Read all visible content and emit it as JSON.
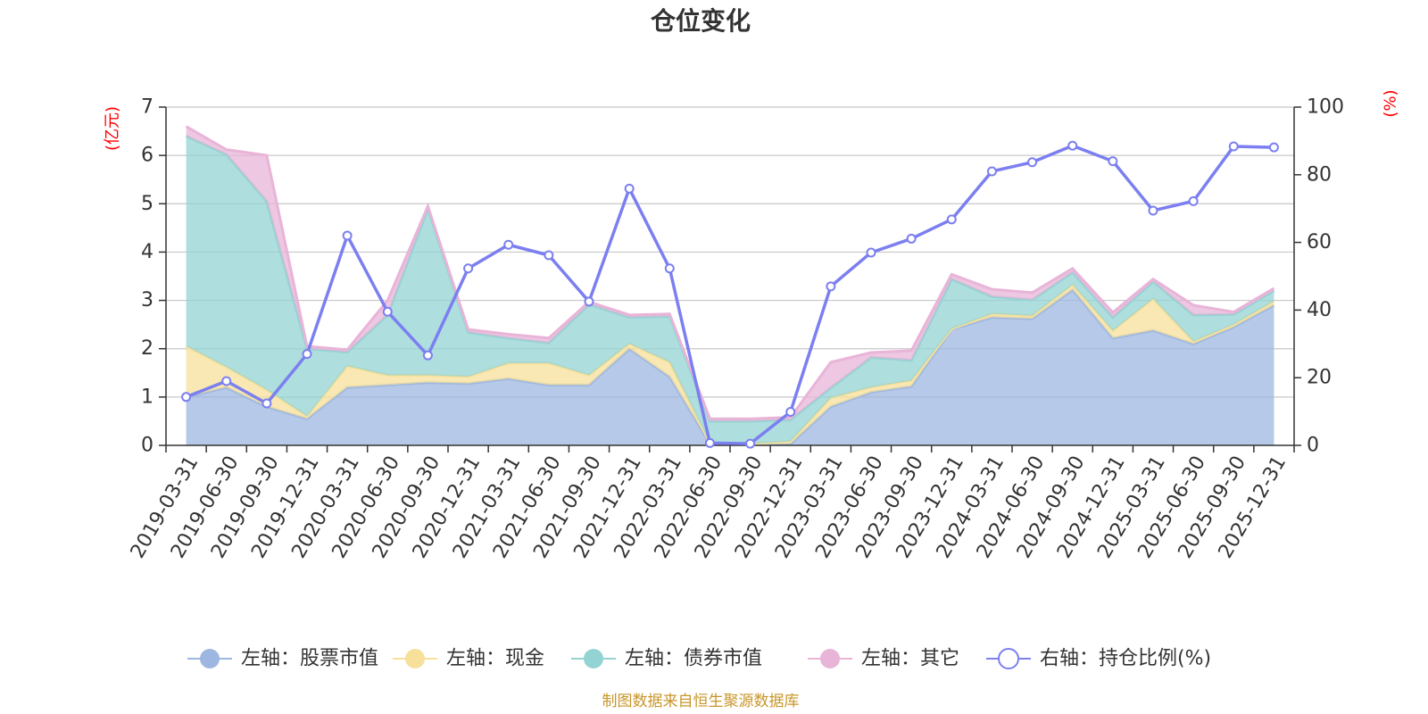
{
  "chart_data": {
    "type": "area",
    "title": "仓位变化",
    "left_axis_unit": "(亿元)",
    "right_axis_unit": "(%)",
    "ylim_left": [
      0,
      7
    ],
    "yticks_left": [
      "0",
      "1",
      "2",
      "3",
      "4",
      "5",
      "6",
      "7"
    ],
    "ylim_right": [
      0,
      100
    ],
    "yticks_right": [
      "0",
      "20",
      "40",
      "60",
      "80",
      "100"
    ],
    "categories": [
      "2019-03-31",
      "2019-06-30",
      "2019-09-30",
      "2019-12-31",
      "2020-03-31",
      "2020-06-30",
      "2020-09-30",
      "2020-12-31",
      "2021-03-31",
      "2021-06-30",
      "2021-09-30",
      "2021-12-31",
      "2022-03-31",
      "2022-06-30",
      "2022-09-30",
      "2022-12-31",
      "2023-03-31",
      "2023-06-30",
      "2023-09-30",
      "2023-12-31",
      "2024-03-31",
      "2024-06-30",
      "2024-09-30",
      "2024-12-31",
      "2025-03-31",
      "2025-06-30",
      "2025-09-30",
      "2025-12-31"
    ],
    "stacked_series": [
      {
        "name": "左轴：股票市值",
        "axis": "left",
        "color": "#9db7e0",
        "values": [
          1.0,
          1.2,
          0.8,
          0.55,
          1.2,
          1.25,
          1.3,
          1.28,
          1.38,
          1.25,
          1.25,
          2.0,
          1.42,
          0.04,
          0.02,
          0.03,
          0.8,
          1.1,
          1.22,
          2.4,
          2.65,
          2.62,
          3.22,
          2.22,
          2.38,
          2.1,
          2.45,
          2.9
        ]
      },
      {
        "name": "左轴：现金",
        "axis": "left",
        "color": "#f7e09a",
        "values": [
          1.05,
          0.42,
          0.35,
          0.05,
          0.44,
          0.2,
          0.15,
          0.14,
          0.32,
          0.45,
          0.2,
          0.1,
          0.3,
          0.01,
          0.01,
          0.05,
          0.18,
          0.1,
          0.12,
          0.01,
          0.07,
          0.06,
          0.1,
          0.15,
          0.65,
          0.05,
          0.05,
          0.08
        ]
      },
      {
        "name": "左轴：债券市值",
        "axis": "left",
        "color": "#93d3d3",
        "values": [
          4.35,
          4.4,
          3.9,
          1.4,
          0.29,
          1.25,
          3.45,
          0.92,
          0.52,
          0.42,
          1.47,
          0.55,
          0.95,
          0.45,
          0.47,
          0.45,
          0.21,
          0.62,
          0.42,
          1.03,
          0.36,
          0.33,
          0.26,
          0.28,
          0.36,
          0.55,
          0.21,
          0.22
        ]
      },
      {
        "name": "左轴：其它",
        "axis": "left",
        "color": "#e8b4d8",
        "values": [
          0.2,
          0.1,
          0.95,
          0.05,
          0.05,
          0.3,
          0.05,
          0.06,
          0.08,
          0.1,
          0.05,
          0.05,
          0.05,
          0.05,
          0.05,
          0.05,
          0.53,
          0.1,
          0.2,
          0.1,
          0.15,
          0.15,
          0.08,
          0.1,
          0.05,
          0.2,
          0.05,
          0.05
        ]
      }
    ],
    "line_series": {
      "name": "右轴：持仓比例(%)",
      "axis": "right",
      "color": "#7b7ff0",
      "values": [
        14.3,
        19.0,
        12.4,
        27.0,
        62.0,
        39.5,
        26.6,
        52.3,
        59.3,
        56.2,
        42.5,
        75.9,
        52.3,
        0.7,
        0.5,
        9.9,
        47.0,
        57.0,
        61.1,
        66.8,
        81.0,
        83.7,
        88.6,
        84.0,
        69.4,
        72.2,
        88.4,
        88.1
      ]
    },
    "source_note": "制图数据来自恒生聚源数据库"
  }
}
